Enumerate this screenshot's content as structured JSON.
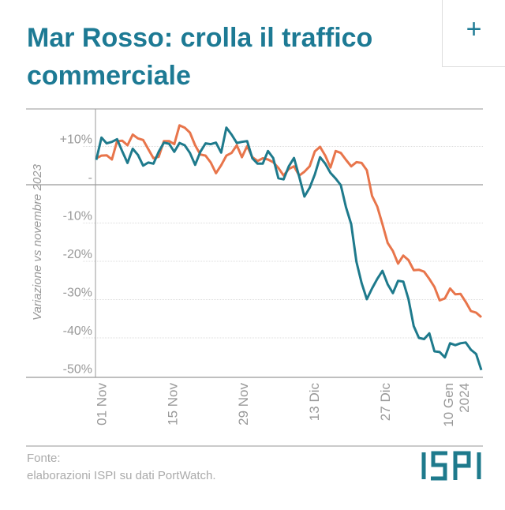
{
  "title": "Mar Rosso: crolla il traffico commerciale",
  "expand_button": {
    "icon": "plus-icon",
    "label": "+"
  },
  "footer": {
    "source_label": "Fonte:",
    "source_text": "elaborazioni ISPI su dati PortWatch."
  },
  "logo": {
    "text": "ISPI"
  },
  "colors": {
    "title": "#1d7a94",
    "series_orange": "#e8754b",
    "series_teal": "#1e7a8c"
  },
  "chart_data": {
    "type": "line",
    "title": "",
    "xlabel": "",
    "ylabel": "Variazione vs novembre 2023",
    "x_range": [
      "2023-10-31",
      "2024-01-15"
    ],
    "x_step": "1 day",
    "xticks": [
      {
        "date": "2023-11-01",
        "label": "01 Nov"
      },
      {
        "date": "2023-11-15",
        "label": "15 Nov"
      },
      {
        "date": "2023-11-29",
        "label": "29 Nov"
      },
      {
        "date": "2023-12-13",
        "label": "13 Dic"
      },
      {
        "date": "2023-12-27",
        "label": "27 Dic"
      },
      {
        "date": "2024-01-10",
        "label": "10 Gen",
        "label2": "2024"
      }
    ],
    "ylim": [
      -50,
      18
    ],
    "yticks": [
      {
        "value": 10,
        "label": "+10%"
      },
      {
        "value": 0,
        "label": "-"
      },
      {
        "value": -10,
        "label": "-10%"
      },
      {
        "value": -20,
        "label": "-20%"
      },
      {
        "value": -30,
        "label": "-30%"
      },
      {
        "value": -40,
        "label": "-40%"
      },
      {
        "value": -50,
        "label": "-50%"
      }
    ],
    "grid": true,
    "legend": "none",
    "series": [
      {
        "color": "#e8754b",
        "values": [
          6.9,
          7.6,
          7.7,
          6.6,
          11.4,
          11.5,
          10.3,
          13.1,
          12.1,
          11.7,
          9.3,
          6.9,
          7.3,
          11.4,
          11.4,
          10.6,
          15.5,
          14.9,
          13.6,
          10.3,
          7.9,
          7.6,
          5.8,
          3.0,
          5.1,
          7.6,
          8.3,
          10.3,
          7.2,
          10.1,
          7.2,
          6.2,
          6.9,
          6.6,
          5.9,
          4.4,
          2.4,
          4.1,
          4.8,
          2.4,
          3.4,
          4.8,
          8.7,
          9.9,
          7.6,
          4.5,
          8.8,
          8.3,
          6.5,
          4.8,
          5.9,
          5.7,
          3.8,
          -2.9,
          -5.7,
          -10.3,
          -15.2,
          -17.3,
          -20.6,
          -18.5,
          -19.7,
          -22.3,
          -22.2,
          -22.7,
          -24.6,
          -26.7,
          -30.2,
          -29.7,
          -27.1,
          -28.6,
          -28.5,
          -30.6,
          -33.0,
          -33.4,
          -34.6
        ]
      },
      {
        "color": "#1e7a8c",
        "values": [
          6.5,
          12.3,
          10.8,
          11.2,
          11.9,
          8.7,
          5.7,
          9.4,
          7.8,
          5.0,
          5.8,
          5.5,
          8.6,
          11.0,
          10.7,
          8.6,
          10.9,
          10.3,
          8.3,
          5.2,
          8.6,
          10.8,
          10.6,
          11.0,
          8.4,
          14.9,
          13.1,
          10.9,
          11.2,
          11.4,
          6.9,
          5.5,
          5.5,
          8.8,
          7.0,
          1.7,
          1.4,
          4.8,
          7.0,
          2.1,
          -3.1,
          -0.8,
          2.7,
          7.2,
          5.5,
          3.1,
          1.6,
          -0.1,
          -5.9,
          -10.3,
          -20.1,
          -25.7,
          -29.9,
          -27.1,
          -24.6,
          -22.5,
          -26.0,
          -28.3,
          -25.1,
          -25.3,
          -29.9,
          -36.9,
          -40.0,
          -40.3,
          -38.8,
          -43.5,
          -43.7,
          -45.1,
          -41.4,
          -41.9,
          -41.4,
          -41.2,
          -43.1,
          -44.2,
          -48.4
        ]
      }
    ]
  }
}
